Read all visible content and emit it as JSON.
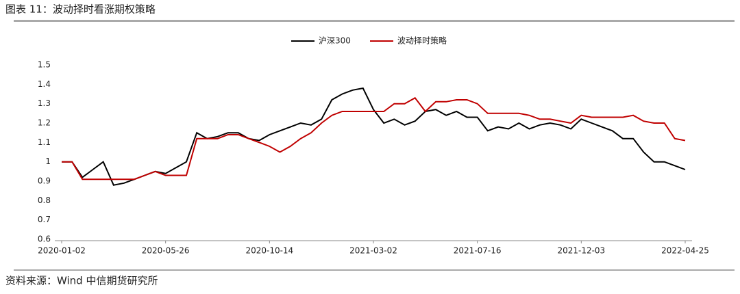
{
  "title": "图表 11：波动择时看涨期权策略",
  "source": "资料来源：Wind 中信期货研究所",
  "chart_data": {
    "type": "line",
    "legend": "top",
    "categories": [
      "2020-01-02",
      null,
      null,
      null,
      null,
      null,
      null,
      null,
      null,
      null,
      "2020-05-26",
      null,
      null,
      null,
      null,
      null,
      null,
      null,
      null,
      null,
      "2020-10-14",
      null,
      null,
      null,
      null,
      null,
      null,
      null,
      null,
      null,
      "2021-03-02",
      null,
      null,
      null,
      null,
      null,
      null,
      null,
      null,
      null,
      "2021-07-16",
      null,
      null,
      null,
      null,
      null,
      null,
      null,
      null,
      null,
      "2021-12-03",
      null,
      null,
      null,
      null,
      null,
      null,
      null,
      null,
      null,
      "2022-04-25"
    ],
    "series": [
      {
        "name": "沪深300",
        "color": "#000000",
        "values": [
          1.0,
          1.0,
          0.92,
          0.96,
          1.0,
          0.88,
          0.89,
          0.91,
          0.93,
          0.95,
          0.94,
          0.97,
          1.0,
          1.15,
          1.12,
          1.13,
          1.15,
          1.15,
          1.12,
          1.11,
          1.14,
          1.16,
          1.18,
          1.2,
          1.19,
          1.22,
          1.32,
          1.35,
          1.37,
          1.38,
          1.27,
          1.2,
          1.22,
          1.19,
          1.21,
          1.26,
          1.27,
          1.24,
          1.26,
          1.23,
          1.23,
          1.16,
          1.18,
          1.17,
          1.2,
          1.17,
          1.19,
          1.2,
          1.19,
          1.17,
          1.22,
          1.2,
          1.18,
          1.16,
          1.12,
          1.12,
          1.05,
          1.0,
          1.0,
          0.98,
          0.96
        ]
      },
      {
        "name": "波动择时策略",
        "color": "#c00000",
        "values": [
          1.0,
          1.0,
          0.91,
          0.91,
          0.91,
          0.91,
          0.91,
          0.91,
          0.93,
          0.95,
          0.93,
          0.93,
          0.93,
          1.12,
          1.12,
          1.12,
          1.14,
          1.14,
          1.12,
          1.1,
          1.08,
          1.05,
          1.08,
          1.12,
          1.15,
          1.2,
          1.24,
          1.26,
          1.26,
          1.26,
          1.26,
          1.26,
          1.3,
          1.3,
          1.33,
          1.26,
          1.31,
          1.31,
          1.32,
          1.32,
          1.3,
          1.25,
          1.25,
          1.25,
          1.25,
          1.24,
          1.22,
          1.22,
          1.21,
          1.2,
          1.24,
          1.23,
          1.23,
          1.23,
          1.23,
          1.24,
          1.21,
          1.2,
          1.2,
          1.12,
          1.11
        ]
      }
    ],
    "ylim": [
      0.6,
      1.5
    ],
    "yticks": [
      0.6,
      0.7,
      0.8,
      0.9,
      1,
      1.1,
      1.2,
      1.3,
      1.4,
      1.5
    ]
  }
}
